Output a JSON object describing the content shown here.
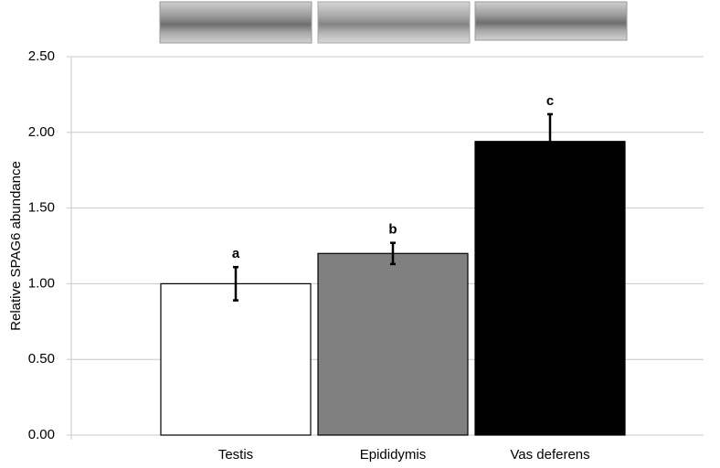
{
  "chart_data": {
    "type": "bar",
    "y_label": "Relative SPAG6 abundance",
    "categories": [
      "Testis",
      "Epididymis",
      "Vas deferens"
    ],
    "values": [
      1.0,
      1.2,
      1.94
    ],
    "errors": [
      0.11,
      0.07,
      0.18
    ],
    "significance": [
      "a",
      "b",
      "c"
    ],
    "colors": [
      "#ffffff",
      "#808080",
      "#000000"
    ],
    "ylim": [
      0,
      2.5
    ],
    "yticks": [
      {
        "value": 0,
        "label": "0.00"
      },
      {
        "value": 0.5,
        "label": "0.50"
      },
      {
        "value": 1,
        "label": "1.00"
      },
      {
        "value": 1.5,
        "label": "1.50"
      },
      {
        "value": 2,
        "label": "2.00"
      },
      {
        "value": 2.5,
        "label": "2.50"
      }
    ],
    "grid": true
  }
}
